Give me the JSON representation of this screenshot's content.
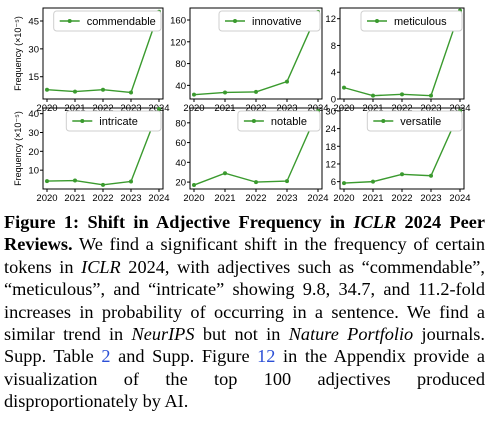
{
  "chart_data": [
    {
      "type": "line",
      "series": [
        {
          "name": "commendable",
          "values": [
            8,
            7,
            8,
            6.5,
            50
          ]
        }
      ],
      "x": [
        2020,
        2021,
        2022,
        2023,
        2024
      ],
      "ylim": [
        3,
        52
      ],
      "yticks": [
        15,
        30,
        45
      ],
      "ylabel": "Frequency (×10⁻⁵)",
      "legend": "top-right",
      "grid": false
    },
    {
      "type": "line",
      "series": [
        {
          "name": "innovative",
          "values": [
            23,
            27,
            28,
            47,
            175
          ]
        }
      ],
      "x": [
        2020,
        2021,
        2022,
        2023,
        2024
      ],
      "ylim": [
        15,
        182
      ],
      "yticks": [
        40,
        80,
        120,
        160
      ],
      "ylabel": "",
      "legend": "top-right",
      "grid": false
    },
    {
      "type": "line",
      "series": [
        {
          "name": "meticulous",
          "values": [
            1.7,
            0.5,
            0.7,
            0.5,
            13.2
          ]
        }
      ],
      "x": [
        2020,
        2021,
        2022,
        2023,
        2024
      ],
      "ylim": [
        0,
        13.6
      ],
      "yticks": [
        0,
        4,
        8,
        12
      ],
      "ylabel": "",
      "legend": "top-right",
      "grid": false
    },
    {
      "type": "line",
      "series": [
        {
          "name": "intricate",
          "values": [
            4.2,
            4.5,
            2.2,
            4,
            42.5
          ]
        }
      ],
      "x": [
        2020,
        2021,
        2022,
        2023,
        2024
      ],
      "ylim": [
        0,
        43
      ],
      "yticks": [
        10,
        20,
        30,
        40
      ],
      "ylabel": "Frequency (×10⁻⁵)",
      "legend": "top-right",
      "grid": false
    },
    {
      "type": "line",
      "series": [
        {
          "name": "notable",
          "values": [
            17,
            29,
            20,
            21,
            92
          ]
        }
      ],
      "x": [
        2020,
        2021,
        2022,
        2023,
        2024
      ],
      "ylim": [
        13,
        95
      ],
      "yticks": [
        20,
        40,
        60,
        80
      ],
      "ylabel": "",
      "legend": "top-right",
      "grid": false
    },
    {
      "type": "line",
      "series": [
        {
          "name": "versatile",
          "values": [
            5.5,
            6,
            8.5,
            8,
            30
          ]
        }
      ],
      "x": [
        2020,
        2021,
        2022,
        2023,
        2024
      ],
      "ylim": [
        3.5,
        31
      ],
      "yticks": [
        6,
        12,
        18,
        24,
        30
      ],
      "ylabel": "",
      "legend": "top-right",
      "grid": false
    }
  ],
  "caption": {
    "label": "Figure 1:",
    "title_a": "Shift in Adjective Frequency in ",
    "title_venue": "ICLR",
    "title_b": " 2024 Peer Reviews.",
    "t1": " We find a significant shift in the frequency of certain tokens in ",
    "venue1": "ICLR",
    "t2": " 2024, with adjectives such as “commendable”, “meticulous”, and “intricate” showing 9.8, 34.7, and 11.2-fold increases in probability of occurring in a sentence. We find a similar trend in ",
    "venue2": "NeurIPS",
    "t3": " but not in ",
    "venue3": "Nature Portfolio",
    "t4": " journals. Supp. Table ",
    "ref_table": "2",
    "t5": " and Supp. Figure ",
    "ref_fig": "12",
    "t6": " in the Appendix provide a visualization of the top 100 adjectives produced disproportionately by AI."
  },
  "colors": {
    "line": "#3a9a2e",
    "axis": "#000000",
    "ref": "#2b4fd6"
  }
}
